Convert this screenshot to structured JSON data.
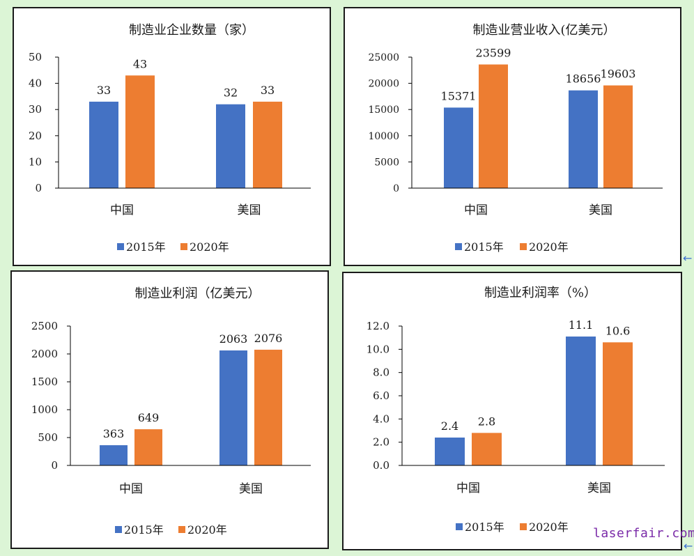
{
  "colors": {
    "series_2015": "#4472c4",
    "series_2020": "#ed7d31",
    "axis": "#000000",
    "text": "#1a1a1a"
  },
  "watermark": "laserfair.com",
  "edge_icons": [
    "arrow-left-icon",
    "arrow-left-icon"
  ],
  "chart_data": [
    {
      "type": "bar",
      "title": "制造业企业数量（家）",
      "categories": [
        "中国",
        "美国"
      ],
      "series": [
        {
          "name": "2015年",
          "values": [
            33,
            32
          ],
          "labels": [
            "33",
            "32"
          ]
        },
        {
          "name": "2020年",
          "values": [
            43,
            33
          ],
          "labels": [
            "43",
            "33"
          ]
        }
      ],
      "yticks": [
        "0",
        "10",
        "20",
        "30",
        "40",
        "50"
      ],
      "ylim": [
        0,
        50
      ],
      "grid": false,
      "legend_position": "bottom"
    },
    {
      "type": "bar",
      "title": "制造业营业收入(亿美元）",
      "categories": [
        "中国",
        "美国"
      ],
      "series": [
        {
          "name": "2015年",
          "values": [
            15371,
            18656
          ],
          "labels": [
            "15371",
            "18656"
          ]
        },
        {
          "name": "2020年",
          "values": [
            23599,
            19603
          ],
          "labels": [
            "23599",
            "19603"
          ]
        }
      ],
      "yticks": [
        "0",
        "5000",
        "10000",
        "15000",
        "20000",
        "25000"
      ],
      "ylim": [
        0,
        25000
      ],
      "grid": false,
      "legend_position": "bottom"
    },
    {
      "type": "bar",
      "title": "制造业利润（亿美元）",
      "categories": [
        "中国",
        "美国"
      ],
      "series": [
        {
          "name": "2015年",
          "values": [
            363,
            2063
          ],
          "labels": [
            "363",
            "2063"
          ]
        },
        {
          "name": "2020年",
          "values": [
            649,
            2076
          ],
          "labels": [
            "649",
            "2076"
          ]
        }
      ],
      "yticks": [
        "0",
        "500",
        "1000",
        "1500",
        "2000",
        "2500"
      ],
      "ylim": [
        0,
        2500
      ],
      "grid": false,
      "legend_position": "bottom"
    },
    {
      "type": "bar",
      "title": "制造业利润率（%）",
      "categories": [
        "中国",
        "美国"
      ],
      "series": [
        {
          "name": "2015年",
          "values": [
            2.4,
            11.1
          ],
          "labels": [
            "2.4",
            "11.1"
          ]
        },
        {
          "name": "2020年",
          "values": [
            2.8,
            10.6
          ],
          "labels": [
            "2.8",
            "10.6"
          ]
        }
      ],
      "yticks": [
        "0.0",
        "2.0",
        "4.0",
        "6.0",
        "8.0",
        "10.0",
        "12.0"
      ],
      "ylim": [
        0,
        12
      ],
      "grid": false,
      "legend_position": "bottom"
    }
  ]
}
